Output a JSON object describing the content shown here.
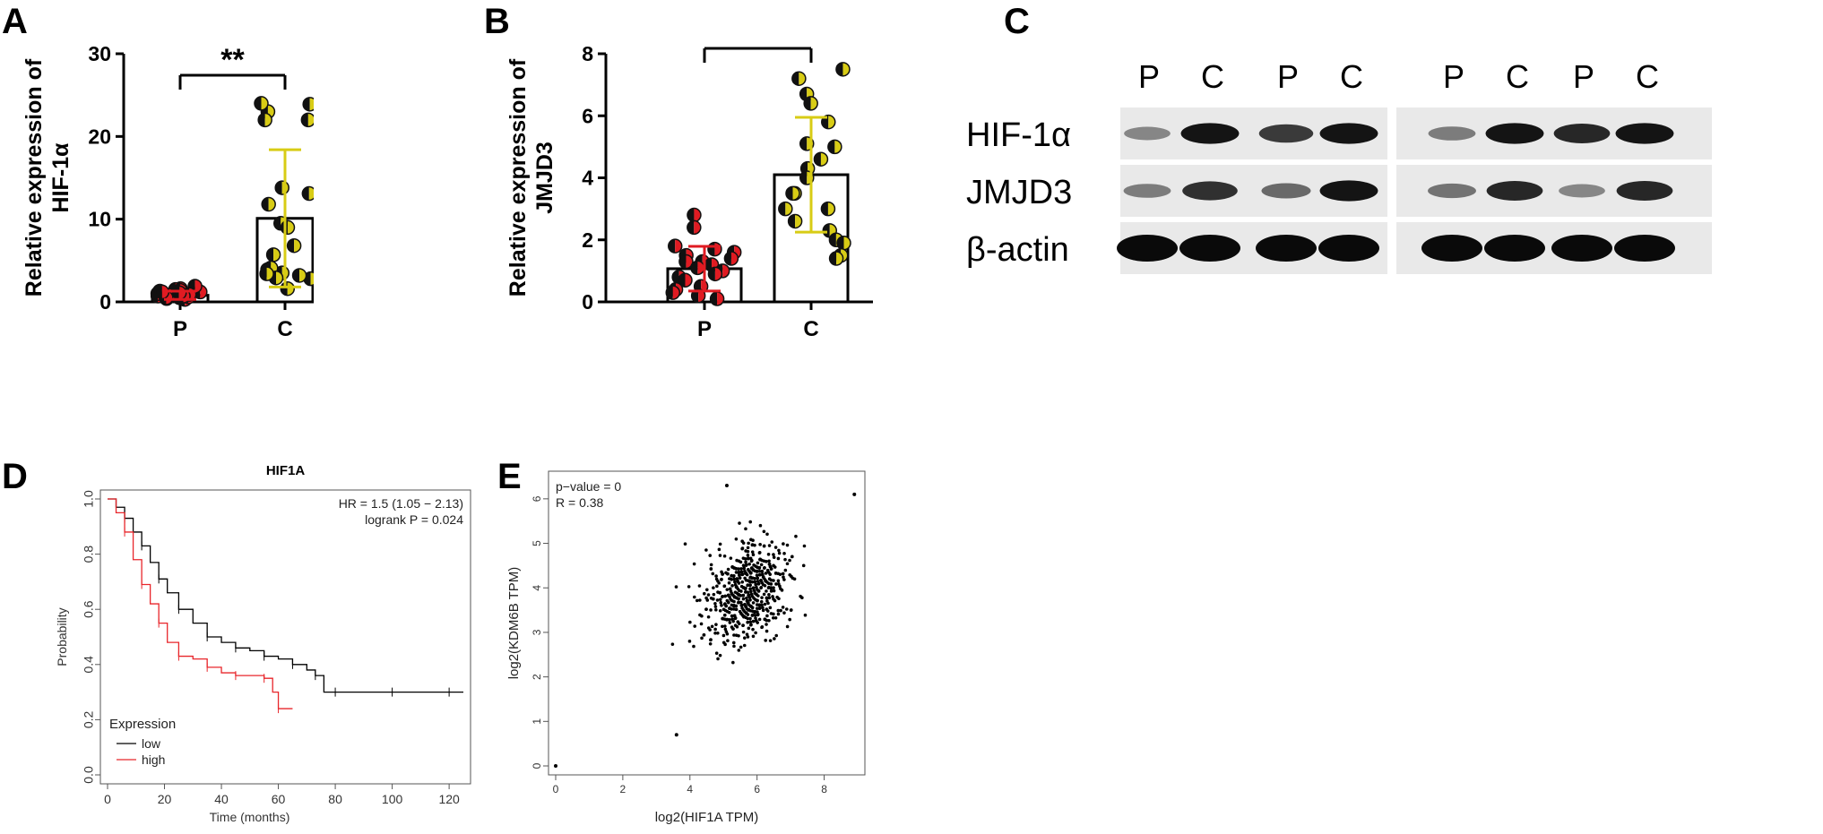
{
  "panel_labels": [
    "A",
    "B",
    "C",
    "D",
    "E"
  ],
  "chart_data": [
    {
      "panel": "A",
      "type": "bar",
      "ylabel": "Relative expression of HIF-1α",
      "categories": [
        "P",
        "C"
      ],
      "values": [
        0.8,
        10.1
      ],
      "error_sd": [
        0.5,
        8.3
      ],
      "ylim": [
        0,
        30
      ],
      "yticks": [
        0,
        10,
        20,
        30
      ],
      "significance": "**",
      "points": {
        "P": [
          0.5,
          0.9,
          1.3,
          0.4,
          1.1,
          1.6,
          0.7,
          1.2,
          0.3,
          1.5,
          0.8,
          1.9,
          0.6,
          1.0,
          1.4,
          0.5,
          0.9,
          1.2,
          0.7,
          1.1
        ],
        "C": [
          23.0,
          24.0,
          22.0,
          23.9,
          22.0,
          13.8,
          13.1,
          11.8,
          9.5,
          9.0,
          6.8,
          5.7,
          3.9,
          2.8,
          3.5,
          4.1,
          1.6,
          2.9,
          3.4,
          3.2
        ]
      }
    },
    {
      "panel": "B",
      "type": "bar",
      "ylabel": "Relative expression of JMJD3",
      "categories": [
        "P",
        "C"
      ],
      "values": [
        1.07,
        4.1
      ],
      "error_sd": [
        0.72,
        1.85
      ],
      "ylim": [
        0,
        8
      ],
      "yticks": [
        0,
        2,
        4,
        6,
        8
      ],
      "significance": "**",
      "points": {
        "P": [
          2.8,
          2.4,
          1.8,
          1.6,
          1.5,
          1.4,
          1.3,
          1.3,
          1.2,
          1.1,
          1.0,
          0.9,
          0.8,
          0.7,
          0.5,
          0.4,
          0.3,
          0.2,
          0.1,
          1.7
        ],
        "C": [
          7.5,
          7.2,
          6.7,
          6.4,
          5.1,
          5.0,
          4.3,
          4.0,
          3.5,
          3.5,
          3.0,
          3.0,
          2.6,
          2.3,
          2.0,
          1.9,
          1.5,
          1.4,
          5.8,
          4.6
        ]
      }
    },
    {
      "panel": "D",
      "type": "line",
      "title": "HIF1A",
      "xlabel": "Time (months)",
      "ylabel": "Probability",
      "xlim": [
        0,
        125
      ],
      "ylim": [
        0,
        1.0
      ],
      "xticks": [
        0,
        20,
        40,
        60,
        80,
        100,
        120
      ],
      "yticks": [
        0.0,
        0.2,
        0.4,
        0.6,
        0.8,
        1.0
      ],
      "annotation_lines": [
        "HR = 1.5 (1.05 − 2.13)",
        "logrank P = 0.024"
      ],
      "legend_title": "Expression",
      "legend_position": "bottom-left",
      "series": [
        {
          "name": "low",
          "color": "#000000",
          "x": [
            0,
            3,
            6,
            9,
            12,
            15,
            18,
            21,
            25,
            30,
            35,
            40,
            45,
            50,
            55,
            60,
            65,
            70,
            73,
            76,
            80,
            90,
            100,
            110,
            120,
            125
          ],
          "y": [
            1.0,
            0.97,
            0.93,
            0.88,
            0.83,
            0.77,
            0.71,
            0.66,
            0.6,
            0.55,
            0.5,
            0.48,
            0.46,
            0.45,
            0.43,
            0.42,
            0.4,
            0.38,
            0.36,
            0.3,
            0.3,
            0.3,
            0.3,
            0.3,
            0.3,
            0.3
          ]
        },
        {
          "name": "high",
          "color": "#e8262b",
          "x": [
            0,
            3,
            6,
            9,
            12,
            15,
            18,
            21,
            25,
            30,
            35,
            40,
            45,
            50,
            55,
            58,
            60,
            65
          ],
          "y": [
            1.0,
            0.95,
            0.88,
            0.78,
            0.69,
            0.62,
            0.55,
            0.48,
            0.43,
            0.42,
            0.39,
            0.37,
            0.36,
            0.36,
            0.35,
            0.3,
            0.24,
            0.24
          ]
        }
      ]
    },
    {
      "panel": "E",
      "type": "scatter",
      "xlabel": "log2(HIF1A TPM)",
      "ylabel": "log2(KDM6B TPM)",
      "xlim": [
        0,
        9
      ],
      "ylim": [
        0,
        6.5
      ],
      "xticks": [
        0,
        2,
        4,
        6,
        8
      ],
      "yticks": [
        0,
        1,
        2,
        3,
        4,
        5,
        6
      ],
      "annotation_lines": [
        "p−value = 0",
        "R = 0.38"
      ],
      "points_n": 600,
      "outliers": [
        [
          0,
          0
        ],
        [
          3.6,
          0.7
        ],
        [
          5.1,
          6.3
        ],
        [
          8.9,
          6.1
        ]
      ]
    }
  ],
  "western_blot": {
    "lane_labels": [
      "P",
      "C",
      "P",
      "C",
      "P",
      "C",
      "P",
      "C"
    ],
    "rows": [
      "HIF-1α",
      "JMJD3",
      "β-actin"
    ],
    "intensities": {
      "HIF-1α": [
        0.35,
        0.95,
        0.75,
        0.95,
        0.4,
        0.95,
        0.85,
        0.95
      ],
      "JMJD3": [
        0.4,
        0.8,
        0.5,
        0.95,
        0.45,
        0.85,
        0.35,
        0.85
      ],
      "β-actin": [
        1.0,
        1.0,
        1.0,
        1.0,
        1.0,
        1.0,
        1.0,
        1.0
      ]
    }
  }
}
